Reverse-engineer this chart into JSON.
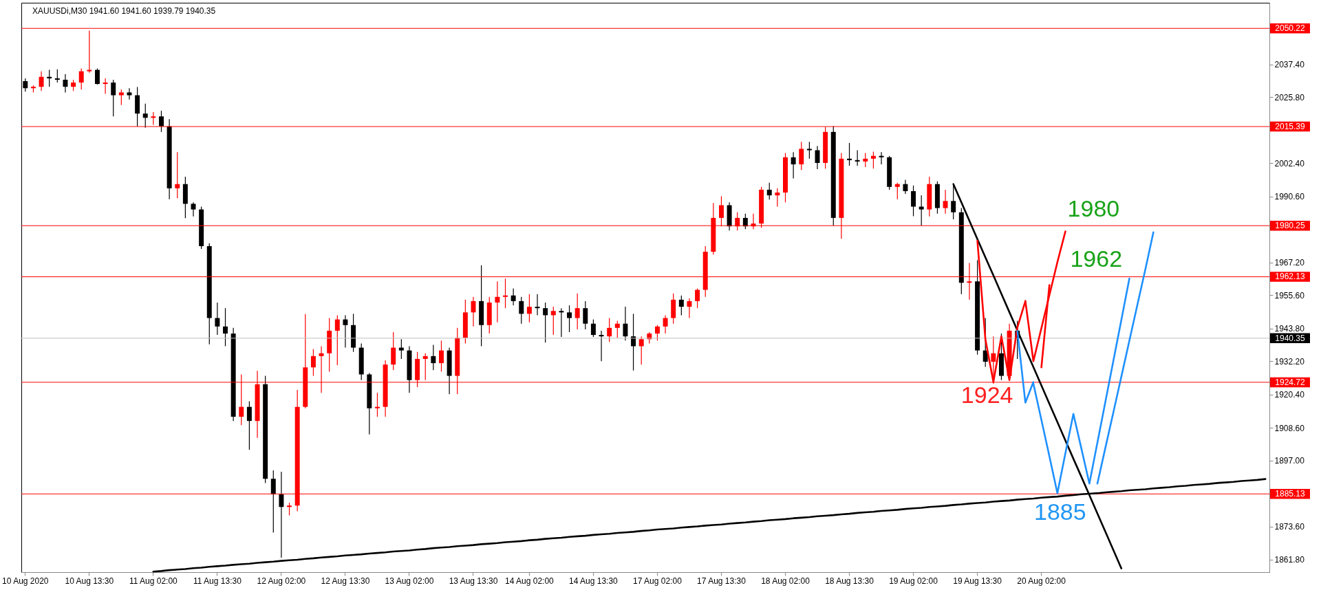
{
  "chart_data": {
    "type": "candlestick",
    "title": "XAUUSDi,M30 1941.60 1941.60 1939.79 1940.35",
    "categories": [
      "10 Aug 2020",
      null,
      null,
      null,
      null,
      null,
      null,
      null,
      "10 Aug 13:30",
      null,
      null,
      null,
      null,
      null,
      null,
      null,
      "11 Aug 02:00",
      null,
      null,
      null,
      null,
      null,
      null,
      null,
      "11 Aug 13:30",
      null,
      null,
      null,
      null,
      null,
      null,
      null,
      "12 Aug 02:00",
      null,
      null,
      null,
      null,
      null,
      null,
      null,
      "12 Aug 13:30",
      null,
      null,
      null,
      null,
      null,
      null,
      null,
      "13 Aug 02:00",
      null,
      null,
      null,
      null,
      null,
      null,
      null,
      "13 Aug 13:30",
      null,
      null,
      null,
      null,
      null,
      null,
      "14 Aug 02:00",
      null,
      null,
      null,
      null,
      null,
      null,
      null,
      "14 Aug 13:30",
      null,
      null,
      null,
      null,
      null,
      null,
      null,
      "17 Aug 02:00",
      null,
      null,
      null,
      null,
      null,
      null,
      null,
      "17 Aug 13:30",
      null,
      null,
      null,
      null,
      null,
      null,
      null,
      "18 Aug 02:00",
      null,
      null,
      null,
      null,
      null,
      null,
      null,
      "18 Aug 13:30",
      null,
      null,
      null,
      null,
      null,
      null,
      null,
      "19 Aug 02:00",
      null,
      null,
      null,
      null,
      null,
      null,
      null,
      "19 Aug 13:30",
      null,
      null,
      null,
      null,
      null,
      null,
      null,
      "20 Aug 02:00",
      null,
      null,
      null,
      null,
      null,
      null,
      null,
      null,
      null,
      null,
      null,
      null,
      null,
      null,
      null,
      null,
      null,
      null,
      null,
      null,
      null,
      null,
      null,
      null,
      null,
      null,
      null,
      null
    ],
    "ohlc": [
      [
        2031.5,
        2032.5,
        2027.8,
        2029.0
      ],
      [
        2029.0,
        2030.0,
        2027.5,
        2029.5
      ],
      [
        2029.5,
        2035.0,
        2028.0,
        2033.0
      ],
      [
        2033.0,
        2035.5,
        2029.5,
        2032.5
      ],
      [
        2032.5,
        2035.7,
        2031.0,
        2032.0
      ],
      [
        2032.0,
        2034.0,
        2027.5,
        2029.5
      ],
      [
        2029.5,
        2032.0,
        2028.0,
        2031.0
      ],
      [
        2031.0,
        2036.0,
        2028.5,
        2035.0
      ],
      [
        2035.0,
        2049.4,
        2034.5,
        2035.5
      ],
      [
        2035.5,
        2036.0,
        2030.3,
        2030.5
      ],
      [
        2030.5,
        2032.5,
        2027.0,
        2031.0
      ],
      [
        2031.0,
        2032.0,
        2019.0,
        2026.5
      ],
      [
        2026.5,
        2028.5,
        2023.0,
        2027.5
      ],
      [
        2027.5,
        2029.0,
        2025.0,
        2026.5
      ],
      [
        2026.5,
        2029.4,
        2015.5,
        2020.0
      ],
      [
        2020.0,
        2023.5,
        2015.0,
        2018.5
      ],
      [
        2018.5,
        2020.5,
        2016.0,
        2019.0
      ],
      [
        2019.0,
        2021.0,
        2013.5,
        2015.5
      ],
      [
        2015.5,
        2018.0,
        1989.6,
        1993.5
      ],
      [
        1993.5,
        2006.3,
        1990.0,
        1995.0
      ],
      [
        1995.0,
        1997.6,
        1982.9,
        1988.0
      ],
      [
        1988.0,
        1988.5,
        1983.5,
        1986.0
      ],
      [
        1986.0,
        1987.0,
        1972.0,
        1973.0
      ],
      [
        1973.0,
        1974.0,
        1938.2,
        1947.5
      ],
      [
        1947.5,
        1953.0,
        1941.5,
        1944.5
      ],
      [
        1944.5,
        1951.0,
        1937.5,
        1942.0
      ],
      [
        1942.0,
        1944.0,
        1911.0,
        1912.5
      ],
      [
        1912.5,
        1927.5,
        1909.5,
        1916.0
      ],
      [
        1916.0,
        1918.0,
        1900.8,
        1911.0
      ],
      [
        1911.0,
        1928.8,
        1905.0,
        1924.0
      ],
      [
        1924.0,
        1927.0,
        1889.0,
        1890.5
      ],
      [
        1890.5,
        1893.5,
        1871.4,
        1885.0
      ],
      [
        1885.0,
        1893.0,
        1862.5,
        1880.5
      ],
      [
        1880.5,
        1882.0,
        1877.5,
        1881.0
      ],
      [
        1881.0,
        1922.0,
        1879.0,
        1916.0
      ],
      [
        1916.0,
        1948.9,
        1915.5,
        1930.0
      ],
      [
        1930.0,
        1936.5,
        1927.0,
        1934.0
      ],
      [
        1934.0,
        1937.5,
        1921.0,
        1935.0
      ],
      [
        1935.0,
        1947.5,
        1928.5,
        1943.0
      ],
      [
        1943.0,
        1948.5,
        1930.8,
        1947.0
      ],
      [
        1947.0,
        1948.5,
        1937.0,
        1945.0
      ],
      [
        1945.0,
        1949.0,
        1935.5,
        1937.0
      ],
      [
        1937.0,
        1938.5,
        1925.5,
        1927.5
      ],
      [
        1927.5,
        1928.0,
        1906.2,
        1915.5
      ],
      [
        1915.5,
        1921.0,
        1912.5,
        1916.0
      ],
      [
        1916.0,
        1932.5,
        1912.5,
        1931.0
      ],
      [
        1931.0,
        1942.5,
        1929.0,
        1937.0
      ],
      [
        1937.0,
        1940.0,
        1933.0,
        1936.0
      ],
      [
        1936.0,
        1937.5,
        1921.0,
        1925.5
      ],
      [
        1925.5,
        1935.5,
        1923.0,
        1933.0
      ],
      [
        1933.0,
        1935.0,
        1925.5,
        1934.0
      ],
      [
        1934.0,
        1938.0,
        1929.0,
        1931.5
      ],
      [
        1931.5,
        1939.5,
        1928.5,
        1936.0
      ],
      [
        1936.0,
        1937.0,
        1920.5,
        1927.0
      ],
      [
        1927.0,
        1944.0,
        1920.5,
        1940.5
      ],
      [
        1940.5,
        1954.0,
        1938.5,
        1949.5
      ],
      [
        1949.5,
        1955.0,
        1944.5,
        1953.5
      ],
      [
        1953.5,
        1966.2,
        1937.5,
        1945.0
      ],
      [
        1945.0,
        1955.0,
        1942.0,
        1953.0
      ],
      [
        1953.0,
        1960.5,
        1946.0,
        1955.0
      ],
      [
        1955.0,
        1961.5,
        1951.0,
        1955.5
      ],
      [
        1955.5,
        1958.0,
        1952.0,
        1953.5
      ],
      [
        1953.5,
        1955.0,
        1945.5,
        1949.0
      ],
      [
        1949.0,
        1956.0,
        1946.0,
        1951.5
      ],
      [
        1951.5,
        1956.0,
        1948.5,
        1951.0
      ],
      [
        1951.0,
        1953.0,
        1938.8,
        1948.5
      ],
      [
        1948.5,
        1951.5,
        1941.5,
        1950.0
      ],
      [
        1950.0,
        1951.0,
        1940.8,
        1949.5
      ],
      [
        1949.5,
        1952.0,
        1942.5,
        1947.5
      ],
      [
        1947.5,
        1956.2,
        1943.5,
        1951.0
      ],
      [
        1951.0,
        1953.5,
        1943.5,
        1945.5
      ],
      [
        1945.5,
        1947.0,
        1940.8,
        1941.5
      ],
      [
        1941.5,
        1943.0,
        1932.2,
        1941.0
      ],
      [
        1941.0,
        1947.5,
        1939.0,
        1944.0
      ],
      [
        1944.0,
        1946.5,
        1940.5,
        1945.5
      ],
      [
        1945.5,
        1951.5,
        1939.5,
        1941.0
      ],
      [
        1941.0,
        1949.0,
        1928.9,
        1937.5
      ],
      [
        1937.5,
        1941.0,
        1931.0,
        1940.0
      ],
      [
        1940.0,
        1942.5,
        1938.5,
        1942.0
      ],
      [
        1942.0,
        1945.0,
        1939.5,
        1944.5
      ],
      [
        1944.5,
        1948.5,
        1942.0,
        1947.5
      ],
      [
        1947.5,
        1956.2,
        1945.5,
        1954.0
      ],
      [
        1954.0,
        1955.5,
        1948.5,
        1951.5
      ],
      [
        1951.5,
        1954.5,
        1947.5,
        1953.5
      ],
      [
        1953.5,
        1958.0,
        1951.0,
        1957.5
      ],
      [
        1957.5,
        1973.0,
        1955.0,
        1971.0
      ],
      [
        1971.0,
        1988.3,
        1970.0,
        1983.0
      ],
      [
        1983.0,
        1990.7,
        1980.0,
        1987.5
      ],
      [
        1987.5,
        1988.5,
        1978.5,
        1980.0
      ],
      [
        1980.0,
        1985.0,
        1978.5,
        1983.0
      ],
      [
        1983.0,
        1984.5,
        1979.0,
        1980.0
      ],
      [
        1980.0,
        1984.5,
        1979.0,
        1981.0
      ],
      [
        1981.0,
        1994.0,
        1979.5,
        1993.0
      ],
      [
        1993.0,
        1995.5,
        1989.5,
        1991.0
      ],
      [
        1991.0,
        1993.5,
        1987.0,
        1992.0
      ],
      [
        1992.0,
        2006.0,
        1988.5,
        2004.5
      ],
      [
        2004.5,
        2006.3,
        1997.0,
        2002.0
      ],
      [
        2002.0,
        2010.0,
        2000.0,
        2007.5
      ],
      [
        2007.5,
        2010.0,
        2004.0,
        2007.0
      ],
      [
        2007.0,
        2008.5,
        2000.3,
        2002.5
      ],
      [
        2002.5,
        2015.2,
        2000.5,
        2013.5
      ],
      [
        2013.5,
        2015.6,
        1980.3,
        1983.0
      ],
      [
        1983.0,
        2006.0,
        1975.6,
        2004.0
      ],
      [
        2004.0,
        2009.6,
        2001.5,
        2003.5
      ],
      [
        2003.5,
        2007.0,
        2001.5,
        2003.0
      ],
      [
        2003.0,
        2006.0,
        2001.0,
        2004.0
      ],
      [
        2004.0,
        2006.5,
        2000.5,
        2005.0
      ],
      [
        2005.0,
        2006.3,
        2002.0,
        2004.5
      ],
      [
        2004.5,
        2005.0,
        1993.0,
        1994.0
      ],
      [
        1994.0,
        1995.5,
        1989.6,
        1995.0
      ],
      [
        1995.0,
        1996.5,
        1991.5,
        1992.5
      ],
      [
        1992.5,
        1994.5,
        1983.6,
        1987.0
      ],
      [
        1987.0,
        1991.0,
        1980.3,
        1986.0
      ],
      [
        1986.0,
        1997.6,
        1983.5,
        1995.0
      ],
      [
        1995.0,
        1996.0,
        1984.5,
        1986.5
      ],
      [
        1986.5,
        1993.0,
        1984.5,
        1989.0
      ],
      [
        1989.0,
        1995.0,
        1982.5,
        1985.0
      ],
      [
        1985.0,
        1986.5,
        1956.0,
        1960.0
      ],
      [
        1960.0,
        1967.0,
        1954.0,
        1960.5
      ],
      [
        1960.5,
        1968.0,
        1934.5,
        1936.0
      ],
      [
        1936.0,
        1947.5,
        1930.2,
        1932.0
      ],
      [
        1932.0,
        1941.0,
        1924.2,
        1935.0
      ],
      [
        1935.0,
        1942.0,
        1925.5,
        1927.0
      ],
      [
        1927.0,
        1945.5,
        1925.5,
        1943.0
      ],
      [
        1943.0,
        1946.5,
        1933.0,
        1940.35
      ],
      null,
      null,
      null,
      null,
      null,
      null,
      null,
      null,
      null,
      null,
      null,
      null,
      null,
      null,
      null,
      null,
      null,
      null,
      null,
      null,
      null,
      null,
      null,
      null,
      null,
      null,
      null,
      null,
      null,
      null,
      null
    ],
    "colors": [
      "#000000",
      "#ff0000",
      "#ff0000",
      "#000000",
      "#000000",
      "#000000",
      "#ff0000",
      "#ff0000",
      "#ff0000",
      "#000000",
      "#ff0000",
      "#000000",
      "#ff0000",
      "#000000",
      "#000000",
      "#000000",
      "#ff0000",
      "#000000",
      "#000000",
      "#ff0000",
      "#000000",
      "#000000",
      "#000000",
      "#000000",
      "#000000",
      "#000000",
      "#000000",
      "#ff0000",
      "#000000",
      "#ff0000",
      "#000000",
      "#000000",
      "#000000",
      "#ff0000",
      "#ff0000",
      "#ff0000",
      "#ff0000",
      "#ff0000",
      "#ff0000",
      "#ff0000",
      "#000000",
      "#000000",
      "#000000",
      "#000000",
      "#ff0000",
      "#ff0000",
      "#ff0000",
      "#000000",
      "#000000",
      "#ff0000",
      "#ff0000",
      "#000000",
      "#ff0000",
      "#000000",
      "#ff0000",
      "#ff0000",
      "#ff0000",
      "#000000",
      "#ff0000",
      "#ff0000",
      "#ff0000",
      "#000000",
      "#000000",
      "#ff0000",
      "#000000",
      "#000000",
      "#ff0000",
      "#000000",
      "#000000",
      "#ff0000",
      "#000000",
      "#000000",
      "#000000",
      "#ff0000",
      "#ff0000",
      "#000000",
      "#000000",
      "#ff0000",
      "#ff0000",
      "#ff0000",
      "#ff0000",
      "#ff0000",
      "#000000",
      "#ff0000",
      "#ff0000",
      "#ff0000",
      "#ff0000",
      "#ff0000",
      "#000000",
      "#ff0000",
      "#000000",
      "#ff0000",
      "#ff0000",
      "#000000",
      "#ff0000",
      "#ff0000",
      "#000000",
      "#ff0000",
      "#000000",
      "#000000",
      "#ff0000",
      "#000000",
      "#ff0000",
      "#000000",
      "#000000",
      "#ff0000",
      "#ff0000",
      "#000000",
      "#000000",
      "#ff0000",
      "#000000",
      "#000000",
      "#000000",
      "#ff0000",
      "#000000",
      "#ff0000",
      "#000000",
      "#000000",
      "#ff0000",
      "#000000",
      "#000000",
      "#ff0000",
      "#000000",
      "#ff0000",
      "#000000",
      null,
      null,
      null,
      null,
      null,
      null,
      null,
      null,
      null,
      null,
      null,
      null,
      null,
      null,
      null,
      null,
      null,
      null,
      null,
      null,
      null,
      null,
      null,
      null,
      null,
      null,
      null,
      null,
      null,
      null,
      null
    ],
    "series": [
      {
        "type": "line",
        "color": "#000000",
        "values": [
          null,
          null,
          null,
          null,
          null,
          null,
          null,
          null,
          null,
          null,
          null,
          null,
          null,
          null,
          null,
          null,
          1857.6,
          1857.8,
          1858.1,
          1858.3,
          1858.5,
          1858.8,
          1859.0,
          1859.3,
          1859.5,
          1859.7,
          1860.0,
          1860.2,
          1860.4,
          1860.7,
          1860.9,
          1861.1,
          1861.4,
          1861.6,
          1861.8,
          1862.1,
          1862.3,
          1862.6,
          1862.8,
          1863.0,
          1863.3,
          1863.5,
          1863.7,
          1864.0,
          1864.2,
          1864.4,
          1864.7,
          1864.9,
          1865.1,
          1865.4,
          1865.6,
          1865.9,
          1866.1,
          1866.3,
          1866.6,
          1866.8,
          1867.0,
          1867.3,
          1867.5,
          1867.7,
          1868.0,
          1868.2,
          1868.4,
          1868.7,
          1868.9,
          1869.2,
          1869.4,
          1869.6,
          1869.9,
          1870.1,
          1870.3,
          1870.6,
          1870.8,
          1871.0,
          1871.3,
          1871.5,
          1871.7,
          1872.0,
          1872.2,
          1872.5,
          1872.7,
          1872.9,
          1873.2,
          1873.4,
          1873.6,
          1873.9,
          1874.1,
          1874.3,
          1874.6,
          1874.8,
          1875.0,
          1875.3,
          1875.5,
          1875.8,
          1876.0,
          1876.2,
          1876.5,
          1876.7,
          1876.9,
          1877.2,
          1877.4,
          1877.6,
          1877.9,
          1878.1,
          1878.4,
          1878.6,
          1878.8,
          1879.1,
          1879.3,
          1879.5,
          1879.8,
          1880.0,
          1880.2,
          1880.5,
          1880.7,
          1880.9,
          1881.2,
          1881.4,
          1881.7,
          1881.9,
          1882.1,
          1882.4,
          1882.6,
          1882.8,
          1883.1,
          1883.3,
          1883.5,
          1883.8,
          1884.0,
          1884.2,
          1884.5,
          1884.7,
          1885.0,
          1885.2,
          1885.4,
          1885.7,
          1885.9,
          1886.1,
          1886.4,
          1886.6,
          1886.8,
          1887.1,
          1887.3,
          1887.5,
          1887.8,
          1888.0,
          1888.3,
          1888.5,
          1888.7,
          1889.0,
          1889.2,
          1889.4,
          1889.7,
          1889.9,
          1890.1,
          1890.4
        ]
      },
      {
        "type": "line",
        "color": "#000000",
        "values": [
          null,
          null,
          null,
          null,
          null,
          null,
          null,
          null,
          null,
          null,
          null,
          null,
          null,
          null,
          null,
          null,
          null,
          null,
          null,
          null,
          null,
          null,
          null,
          null,
          null,
          null,
          null,
          null,
          null,
          null,
          null,
          null,
          null,
          null,
          null,
          null,
          null,
          null,
          null,
          null,
          null,
          null,
          null,
          null,
          null,
          null,
          null,
          null,
          null,
          null,
          null,
          null,
          null,
          null,
          null,
          null,
          null,
          null,
          null,
          null,
          null,
          null,
          null,
          null,
          null,
          null,
          null,
          null,
          null,
          null,
          null,
          null,
          null,
          null,
          null,
          null,
          null,
          null,
          null,
          null,
          null,
          null,
          null,
          null,
          null,
          null,
          null,
          null,
          null,
          null,
          null,
          null,
          null,
          null,
          null,
          null,
          null,
          null,
          null,
          null,
          null,
          null,
          null,
          null,
          null,
          null,
          null,
          null,
          null,
          null,
          null,
          null,
          null,
          null,
          null,
          null,
          1995.0,
          1988.5,
          1982.0,
          1975.5,
          1969.0,
          1962.6,
          1956.1,
          1949.6,
          1943.1,
          1936.6,
          1930.1,
          1923.6,
          1917.1,
          1910.6,
          1904.1,
          1897.6,
          1891.2,
          1884.7,
          1878.2,
          1871.7,
          1865.2,
          1858.7,
          null,
          null,
          null,
          null,
          null,
          null,
          null,
          null,
          null,
          null,
          null,
          null,
          null,
          null,
          null,
          null,
          null,
          null
        ]
      },
      {
        "type": "line",
        "color": "#ff0000",
        "values": [
          null,
          null,
          null,
          null,
          null,
          null,
          null,
          null,
          null,
          null,
          null,
          null,
          null,
          null,
          null,
          null,
          null,
          null,
          null,
          null,
          null,
          null,
          null,
          null,
          null,
          null,
          null,
          null,
          null,
          null,
          null,
          null,
          null,
          null,
          null,
          null,
          null,
          null,
          null,
          null,
          null,
          null,
          null,
          null,
          null,
          null,
          null,
          null,
          null,
          null,
          null,
          null,
          null,
          null,
          null,
          null,
          null,
          null,
          null,
          null,
          null,
          null,
          null,
          null,
          null,
          null,
          null,
          null,
          null,
          null,
          null,
          null,
          null,
          null,
          null,
          null,
          null,
          null,
          null,
          null,
          null,
          null,
          null,
          null,
          null,
          null,
          null,
          null,
          null,
          null,
          null,
          null,
          null,
          null,
          null,
          null,
          null,
          null,
          null,
          null,
          null,
          null,
          null,
          null,
          null,
          null,
          null,
          null,
          null,
          null,
          null,
          null,
          null,
          null,
          null,
          null,
          null,
          null,
          null,
          1974.9,
          1940.0,
          1924.8,
          1941.0,
          1925.5,
          1944.2,
          1953.5,
          null,
          null,
          null,
          null,
          null,
          null,
          null,
          null,
          null,
          null,
          null,
          null,
          null,
          null,
          null,
          null,
          null,
          null,
          null,
          null,
          null,
          null,
          null,
          null,
          null,
          null,
          null,
          null,
          null,
          null
        ]
      },
      {
        "type": "line",
        "color": "#ff0000",
        "values": [
          null,
          null,
          null,
          null,
          null,
          null,
          null,
          null,
          null,
          null,
          null,
          null,
          null,
          null,
          null,
          null,
          null,
          null,
          null,
          null,
          null,
          null,
          null,
          null,
          null,
          null,
          null,
          null,
          null,
          null,
          null,
          null,
          null,
          null,
          null,
          null,
          null,
          null,
          null,
          null,
          null,
          null,
          null,
          null,
          null,
          null,
          null,
          null,
          null,
          null,
          null,
          null,
          null,
          null,
          null,
          null,
          null,
          null,
          null,
          null,
          null,
          null,
          null,
          null,
          null,
          null,
          null,
          null,
          null,
          null,
          null,
          null,
          null,
          null,
          null,
          null,
          null,
          null,
          null,
          null,
          null,
          null,
          null,
          null,
          null,
          null,
          null,
          null,
          null,
          null,
          null,
          null,
          null,
          null,
          null,
          null,
          null,
          null,
          null,
          null,
          null,
          null,
          null,
          null,
          null,
          null,
          null,
          null,
          null,
          null,
          null,
          null,
          null,
          null,
          null,
          null,
          null,
          null,
          null,
          null,
          null,
          null,
          null,
          null,
          null,
          1953.5,
          1932.2,
          1943.9,
          1955.6,
          1967.3,
          1978.2,
          null,
          null,
          null,
          null,
          null,
          null,
          null,
          null,
          null,
          null,
          null,
          null,
          null,
          null,
          null,
          null,
          null,
          null,
          null,
          null,
          null,
          null,
          null,
          null,
          null
        ]
      },
      {
        "type": "line",
        "color": "#ff0000",
        "values": [
          null,
          null,
          null,
          null,
          null,
          null,
          null,
          null,
          null,
          null,
          null,
          null,
          null,
          null,
          null,
          null,
          null,
          null,
          null,
          null,
          null,
          null,
          null,
          null,
          null,
          null,
          null,
          null,
          null,
          null,
          null,
          null,
          null,
          null,
          null,
          null,
          null,
          null,
          null,
          null,
          null,
          null,
          null,
          null,
          null,
          null,
          null,
          null,
          null,
          null,
          null,
          null,
          null,
          null,
          null,
          null,
          null,
          null,
          null,
          null,
          null,
          null,
          null,
          null,
          null,
          null,
          null,
          null,
          null,
          null,
          null,
          null,
          null,
          null,
          null,
          null,
          null,
          null,
          null,
          null,
          null,
          null,
          null,
          null,
          null,
          null,
          null,
          null,
          null,
          null,
          null,
          null,
          null,
          null,
          null,
          null,
          null,
          null,
          null,
          null,
          null,
          null,
          null,
          null,
          null,
          null,
          null,
          null,
          null,
          null,
          null,
          null,
          null,
          null,
          null,
          null,
          null,
          null,
          null,
          null,
          null,
          null,
          null,
          null,
          null,
          null,
          null,
          1930.0,
          1959.2,
          null,
          null,
          null,
          null,
          null,
          null,
          null,
          null,
          null,
          null,
          null,
          null,
          null,
          null,
          null,
          null,
          null,
          null,
          null,
          null,
          null,
          null,
          null,
          null,
          null,
          null,
          null
        ]
      },
      {
        "type": "line",
        "color": "#1e90ff",
        "values": [
          null,
          null,
          null,
          null,
          null,
          null,
          null,
          null,
          null,
          null,
          null,
          null,
          null,
          null,
          null,
          null,
          null,
          null,
          null,
          null,
          null,
          null,
          null,
          null,
          null,
          null,
          null,
          null,
          null,
          null,
          null,
          null,
          null,
          null,
          null,
          null,
          null,
          null,
          null,
          null,
          null,
          null,
          null,
          null,
          null,
          null,
          null,
          null,
          null,
          null,
          null,
          null,
          null,
          null,
          null,
          null,
          null,
          null,
          null,
          null,
          null,
          null,
          null,
          null,
          null,
          null,
          null,
          null,
          null,
          null,
          null,
          null,
          null,
          null,
          null,
          null,
          null,
          null,
          null,
          null,
          null,
          null,
          null,
          null,
          null,
          null,
          null,
          null,
          null,
          null,
          null,
          null,
          null,
          null,
          null,
          null,
          null,
          null,
          null,
          null,
          null,
          null,
          null,
          null,
          null,
          null,
          null,
          null,
          null,
          null,
          null,
          null,
          null,
          null,
          null,
          null,
          null,
          null,
          null,
          null,
          null,
          null,
          null,
          null,
          1942.9,
          1917.5,
          1924.8,
          null,
          null,
          null,
          null,
          null,
          null,
          null,
          null,
          null,
          null,
          null,
          null,
          null,
          null,
          null,
          null,
          null,
          null,
          null,
          null,
          null,
          null,
          null,
          null,
          null,
          null,
          null,
          null,
          null
        ]
      },
      {
        "type": "line",
        "color": "#1e90ff",
        "values": [
          null,
          null,
          null,
          null,
          null,
          null,
          null,
          null,
          null,
          null,
          null,
          null,
          null,
          null,
          null,
          null,
          null,
          null,
          null,
          null,
          null,
          null,
          null,
          null,
          null,
          null,
          null,
          null,
          null,
          null,
          null,
          null,
          null,
          null,
          null,
          null,
          null,
          null,
          null,
          null,
          null,
          null,
          null,
          null,
          null,
          null,
          null,
          null,
          null,
          null,
          null,
          null,
          null,
          null,
          null,
          null,
          null,
          null,
          null,
          null,
          null,
          null,
          null,
          null,
          null,
          null,
          null,
          null,
          null,
          null,
          null,
          null,
          null,
          null,
          null,
          null,
          null,
          null,
          null,
          null,
          null,
          null,
          null,
          null,
          null,
          null,
          null,
          null,
          null,
          null,
          null,
          null,
          null,
          null,
          null,
          null,
          null,
          null,
          null,
          null,
          null,
          null,
          null,
          null,
          null,
          null,
          null,
          null,
          null,
          null,
          null,
          null,
          null,
          null,
          null,
          null,
          null,
          null,
          null,
          null,
          null,
          null,
          null,
          null,
          null,
          null,
          1924.2,
          1911.4,
          1898.5,
          1885.4,
          1899.5,
          1913.5,
          1901.2,
          1888.8,
          1903.3,
          1917.8,
          1932.4,
          1946.9,
          1961.5,
          null,
          null,
          null,
          null,
          null,
          null,
          null,
          null,
          null,
          null,
          null,
          null,
          null,
          null,
          null,
          null,
          null
        ]
      },
      {
        "type": "line",
        "color": "#1e90ff",
        "values": [
          null,
          null,
          null,
          null,
          null,
          null,
          null,
          null,
          null,
          null,
          null,
          null,
          null,
          null,
          null,
          null,
          null,
          null,
          null,
          null,
          null,
          null,
          null,
          null,
          null,
          null,
          null,
          null,
          null,
          null,
          null,
          null,
          null,
          null,
          null,
          null,
          null,
          null,
          null,
          null,
          null,
          null,
          null,
          null,
          null,
          null,
          null,
          null,
          null,
          null,
          null,
          null,
          null,
          null,
          null,
          null,
          null,
          null,
          null,
          null,
          null,
          null,
          null,
          null,
          null,
          null,
          null,
          null,
          null,
          null,
          null,
          null,
          null,
          null,
          null,
          null,
          null,
          null,
          null,
          null,
          null,
          null,
          null,
          null,
          null,
          null,
          null,
          null,
          null,
          null,
          null,
          null,
          null,
          null,
          null,
          null,
          null,
          null,
          null,
          null,
          null,
          null,
          null,
          null,
          null,
          null,
          null,
          null,
          null,
          null,
          null,
          null,
          null,
          null,
          null,
          null,
          null,
          null,
          null,
          null,
          null,
          null,
          null,
          null,
          null,
          null,
          null,
          null,
          null,
          null,
          null,
          null,
          null,
          null,
          1888.8,
          1901.5,
          1914.1,
          1926.8,
          1939.5,
          1952.2,
          1964.8,
          1977.9,
          null,
          null,
          null,
          null,
          null,
          null,
          null,
          null,
          null,
          null,
          null,
          null,
          null,
          null
        ]
      }
    ],
    "ref_lines": [
      {
        "axis": "y",
        "value": 2050.22,
        "label": "2050.22",
        "color": "#ff0000"
      },
      {
        "axis": "y",
        "value": 2015.39,
        "label": "2015.39",
        "color": "#ff0000"
      },
      {
        "axis": "y",
        "value": 1980.25,
        "label": "1980.25",
        "color": "#ff0000"
      },
      {
        "axis": "y",
        "value": 1962.13,
        "label": "1962.13",
        "color": "#ff0000"
      },
      {
        "axis": "y",
        "value": 1940.35,
        "label": "1940.35",
        "color": "#c0c0c0"
      },
      {
        "axis": "y",
        "value": 1924.72,
        "label": "1924.72",
        "color": "#ff0000"
      },
      {
        "axis": "y",
        "value": 1885.13,
        "label": "1885.13",
        "color": "#ff0000"
      }
    ],
    "annotations": [
      "1980",
      "1962",
      "1924",
      "1885"
    ],
    "ylim": [
      1857.4,
      2059.3
    ],
    "yticks": [
      {
        "value": 2037.4,
        "label": "2037.40"
      },
      {
        "value": 2025.8,
        "label": "2025.80"
      },
      {
        "value": 2002.4,
        "label": "2002.40"
      },
      {
        "value": 1990.6,
        "label": "1990.60"
      },
      {
        "value": 1967.2,
        "label": "1967.20"
      },
      {
        "value": 1955.6,
        "label": "1955.60"
      },
      {
        "value": 1943.8,
        "label": "1943.80"
      },
      {
        "value": 1932.2,
        "label": "1932.20"
      },
      {
        "value": 1920.4,
        "label": "1920.40"
      },
      {
        "value": 1908.6,
        "label": "1908.60"
      },
      {
        "value": 1897.0,
        "label": "1897.00"
      },
      {
        "value": 1873.6,
        "label": "1873.60"
      },
      {
        "value": 1861.8,
        "label": "1861.80"
      }
    ]
  }
}
